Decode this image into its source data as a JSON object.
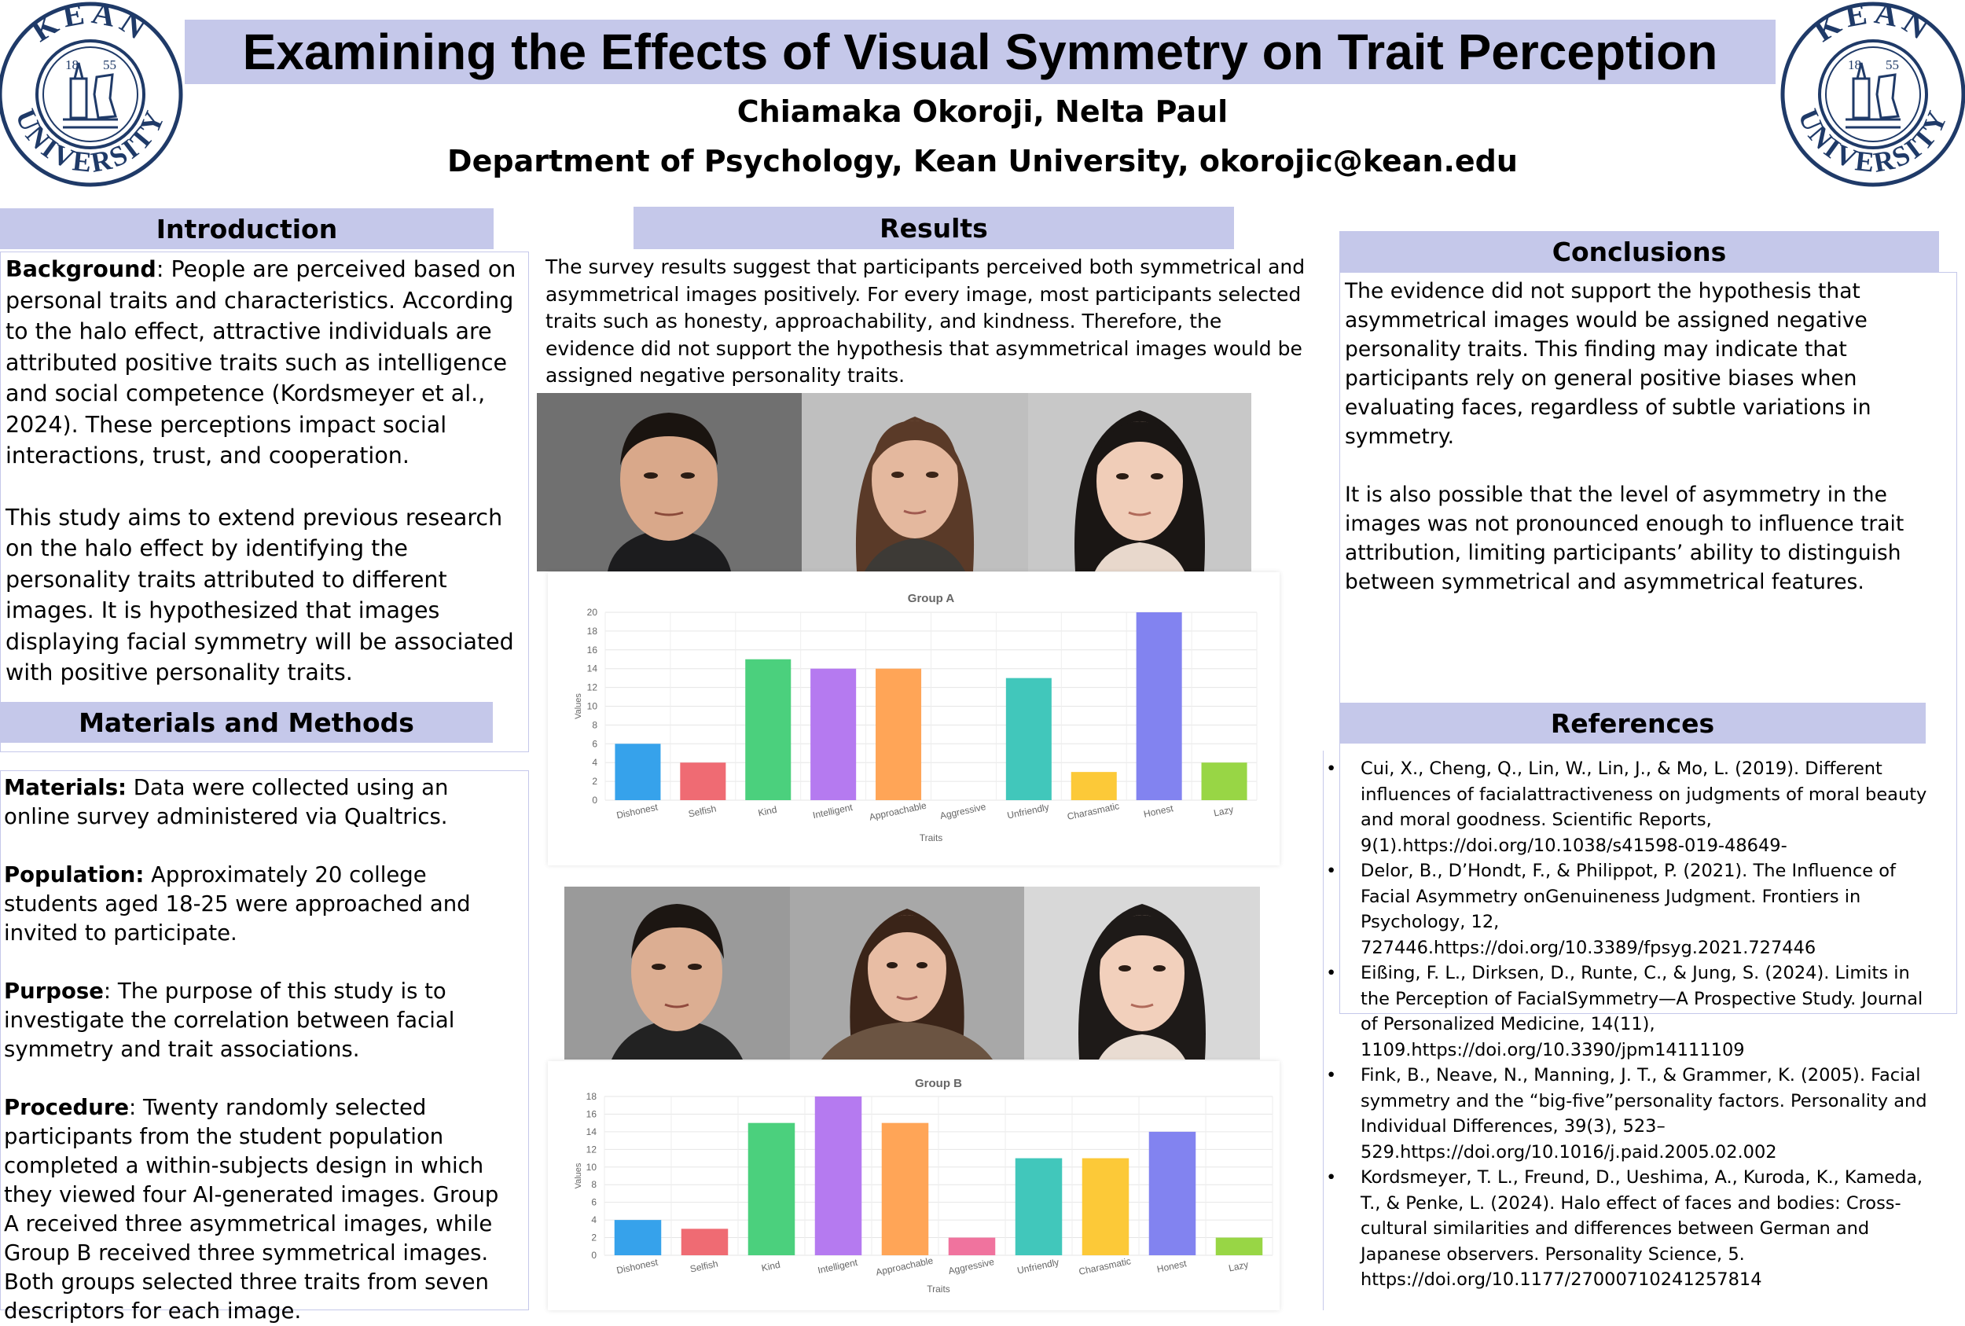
{
  "header": {
    "title": "Examining the Effects of Visual Symmetry on Trait Perception",
    "authors": "Chiamaka Okoroji, Nelta Paul",
    "affiliation": "Department of Psychology, Kean University, okorojic@kean.edu",
    "logo": {
      "top_text": "KEAN",
      "bottom_text": "UNIVERSITY",
      "year_left": "18",
      "year_right": "55",
      "color": "#1f3a68"
    }
  },
  "introduction": {
    "heading": "Introduction",
    "background_label": "Background",
    "background_text": ": People are perceived based on personal traits and characteristics. According to the halo effect, attractive individuals are attributed positive traits such as intelligence and social competence (Kordsmeyer et al., 2024). These perceptions impact social interactions, trust, and cooperation.",
    "aim_text": "This study aims to extend previous research on the halo effect by identifying the personality traits attributed to different images. It is hypothesized that images displaying facial symmetry will be associated with positive personality traits."
  },
  "methods": {
    "heading": "Materials and Methods",
    "materials_label": "Materials:",
    "materials_text": " Data were collected using an online survey administered via Qualtrics.",
    "population_label": "Population:",
    "population_text": " Approximately 20 college students aged 18-25 were approached and invited to participate.",
    "purpose_label": "Purpose",
    "purpose_text": ": The purpose of this study is to investigate the correlation between facial symmetry and trait associations.",
    "procedure_label": "Procedure",
    "procedure_text": ": Twenty randomly selected participants from the student population completed a within-subjects design in which they viewed four AI-generated images. Group A received three asymmetrical images, while Group B received three symmetrical images. Both groups selected three traits from seven descriptors for each image."
  },
  "results": {
    "heading": "Results",
    "text": "The survey results suggest that participants perceived both symmetrical and asymmetrical images positively. For every image, most participants selected traits such as honesty, approachability, and kindness. Therefore, the evidence did not support the hypothesis that asymmetrical images would be assigned negative personality traits."
  },
  "chart_data": [
    {
      "type": "bar",
      "title": "Group A",
      "xlabel": "Traits",
      "ylabel": "Values",
      "categories": [
        "Dishonest",
        "Selfish",
        "Kind",
        "Intelligent",
        "Approachable",
        "Aggressive",
        "Unfriendly",
        "Charasmatic",
        "Honest",
        "Lazy"
      ],
      "values": [
        6,
        4,
        15,
        14,
        14,
        0,
        13,
        3,
        20,
        4
      ],
      "colors": [
        "#36a2eb",
        "#ef6b73",
        "#4bd07d",
        "#b57af0",
        "#ffa557",
        "#f0739e",
        "#41c7bb",
        "#fcc938",
        "#8283f0",
        "#98d645"
      ],
      "ylim": [
        0,
        20
      ],
      "yticks": [
        0,
        2,
        4,
        6,
        8,
        10,
        12,
        14,
        16,
        18,
        20
      ],
      "grid": true
    },
    {
      "type": "bar",
      "title": "Group B",
      "xlabel": "Traits",
      "ylabel": "Values",
      "categories": [
        "Dishonest",
        "Selfish",
        "Kind",
        "Intelligent",
        "Approachable",
        "Aggressive",
        "Unfriendly",
        "Charasmatic",
        "Honest",
        "Lazy"
      ],
      "values": [
        4,
        3,
        15,
        18,
        15,
        2,
        11,
        11,
        14,
        2
      ],
      "colors": [
        "#36a2eb",
        "#ef6b73",
        "#4bd07d",
        "#b57af0",
        "#ffa557",
        "#f0739e",
        "#41c7bb",
        "#fcc938",
        "#8283f0",
        "#98d645"
      ],
      "ylim": [
        0,
        18
      ],
      "yticks": [
        0,
        2,
        4,
        6,
        8,
        10,
        12,
        14,
        16,
        18
      ],
      "grid": true
    }
  ],
  "conclusions": {
    "heading": "Conclusions",
    "para1": "The evidence did not support the hypothesis that asymmetrical images would be assigned negative personality traits. This finding may indicate that participants rely on general positive biases when evaluating faces, regardless of subtle variations in symmetry.",
    "para2": "It is also possible that the level of asymmetry in the images was not pronounced enough to influence trait attribution, limiting participants’ ability to distinguish between symmetrical and asymmetrical features."
  },
  "references": {
    "heading": "References",
    "items": [
      " Cui, X., Cheng, Q., Lin, W., Lin, J., & Mo, L. (2019). Different influences of facialattractiveness on judgments of moral beauty and moral goodness. Scientific Reports, 9(1).https://doi.org/10.1038/s41598-019-48649-",
      "Delor, B., D’Hondt, F., & Philippot, P. (2021). The Influence of Facial Asymmetry onGenuineness Judgment. Frontiers in Psychology, 12, 727446.https://doi.org/10.3389/fpsyg.2021.727446",
      "Eißing, F. L., Dirksen, D., Runte, C., & Jung, S. (2024). Limits in the Perception of FacialSymmetry—A Prospective Study. Journal of Personalized Medicine, 14(11), 1109.https://doi.org/10.3390/jpm14111109",
      "Fink, B., Neave, N., Manning, J. T., & Grammer, K. (2005). Facial symmetry and the “big-five”personality factors. Personality and Individual Differences, 39(3), 523–529.https://doi.org/10.1016/j.paid.2005.02.002",
      "Kordsmeyer, T. L., Freund, D., Ueshima, A., Kuroda, K., Kameda, T., & Penke, L. (2024). Halo effect of faces and bodies: Cross-cultural similarities and differences between German and Japanese observers. Personality Science, 5. https://doi.org/10.1177/27000710241257814"
    ]
  },
  "colors": {
    "accent": "#c5c8ea",
    "logo": "#1f3a68"
  }
}
